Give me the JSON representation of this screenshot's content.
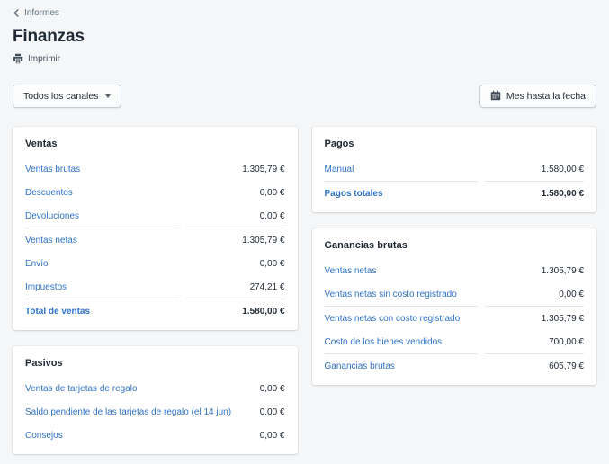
{
  "header": {
    "breadcrumb": "Informes",
    "title": "Finanzas",
    "print_label": "Imprimir"
  },
  "toolbar": {
    "channel_filter_label": "Todos los canales",
    "date_range_label": "Mes hasta la fecha"
  },
  "colors": {
    "link_blue": "#2e72c6",
    "text_dark": "#212b36",
    "subdued_gray": "#637381",
    "page_background": "#f4f6f8",
    "card_background": "#ffffff",
    "divider": "#e4e7ea"
  },
  "icons": {
    "back": "chevron-left-icon",
    "print": "printer-icon",
    "date": "calendar-icon",
    "channel_caret": "caret-down-icon"
  },
  "cards": {
    "ventas": {
      "title": "Ventas",
      "rows": [
        {
          "label": "Ventas brutas",
          "value": "1.305,79 €",
          "divider": false,
          "bold": false
        },
        {
          "label": "Descuentos",
          "value": "0,00 €",
          "divider": false,
          "bold": false
        },
        {
          "label": "Devoluciones",
          "value": "0,00 €",
          "divider": false,
          "bold": false
        },
        {
          "label": "Ventas netas",
          "value": "1.305,79 €",
          "divider": true,
          "bold": false
        },
        {
          "label": "Envío",
          "value": "0,00 €",
          "divider": false,
          "bold": false
        },
        {
          "label": "Impuestos",
          "value": "274,21 €",
          "divider": false,
          "bold": false
        },
        {
          "label": "Total de ventas",
          "value": "1.580,00 €",
          "divider": true,
          "bold": true
        }
      ]
    },
    "pasivos": {
      "title": "Pasivos",
      "rows": [
        {
          "label": "Ventas de tarjetas de regalo",
          "value": "0,00 €",
          "divider": false,
          "bold": false
        },
        {
          "label": "Saldo pendiente de las tarjetas de regalo (el 14 jun)",
          "value": "0,00 €",
          "divider": false,
          "bold": false
        },
        {
          "label": "Consejos",
          "value": "0,00 €",
          "divider": false,
          "bold": false
        }
      ]
    },
    "pagos": {
      "title": "Pagos",
      "rows": [
        {
          "label": "Manual",
          "value": "1.580,00 €",
          "divider": false,
          "bold": false
        },
        {
          "label": "Pagos totales",
          "value": "1.580,00 €",
          "divider": true,
          "bold": true
        }
      ]
    },
    "ganancias": {
      "title": "Ganancias brutas",
      "rows": [
        {
          "label": "Ventas netas",
          "value": "1.305,79 €",
          "divider": false,
          "bold": false
        },
        {
          "label": "Ventas netas sin costo registrado",
          "value": "0,00 €",
          "divider": false,
          "bold": false
        },
        {
          "label": "Ventas netas con costo registrado",
          "value": "1.305,79 €",
          "divider": true,
          "bold": false
        },
        {
          "label": "Costo de los bienes vendidos",
          "value": "700,00 €",
          "divider": false,
          "bold": false
        },
        {
          "label": "Ganancias brutas",
          "value": "605,79 €",
          "divider": true,
          "bold": false
        }
      ]
    }
  }
}
